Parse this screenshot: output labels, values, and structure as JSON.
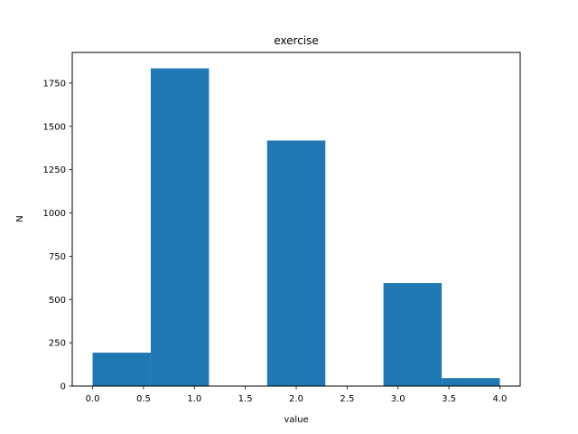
{
  "chart_data": {
    "type": "bar",
    "title": "exercise",
    "xlabel": "value",
    "ylabel": "N",
    "bins": [
      {
        "x0": 0.0,
        "x1": 0.571,
        "value": 193
      },
      {
        "x0": 0.571,
        "x1": 1.143,
        "value": 1835
      },
      {
        "x0": 1.143,
        "x1": 1.714,
        "value": 0
      },
      {
        "x0": 1.714,
        "x1": 2.286,
        "value": 1418
      },
      {
        "x0": 2.286,
        "x1": 2.857,
        "value": 0
      },
      {
        "x0": 2.857,
        "x1": 3.429,
        "value": 595
      },
      {
        "x0": 3.429,
        "x1": 4.0,
        "value": 46
      }
    ],
    "xlim": [
      -0.2,
      4.2
    ],
    "ylim": [
      0,
      1927
    ],
    "xticks": [
      "0.0",
      "0.5",
      "1.0",
      "1.5",
      "2.0",
      "2.5",
      "3.0",
      "3.5",
      "4.0"
    ],
    "yticks": [
      "0",
      "250",
      "500",
      "750",
      "1000",
      "1250",
      "1500",
      "1750"
    ],
    "bar_color": "#1f77b4",
    "grid": false,
    "legend": "none"
  }
}
